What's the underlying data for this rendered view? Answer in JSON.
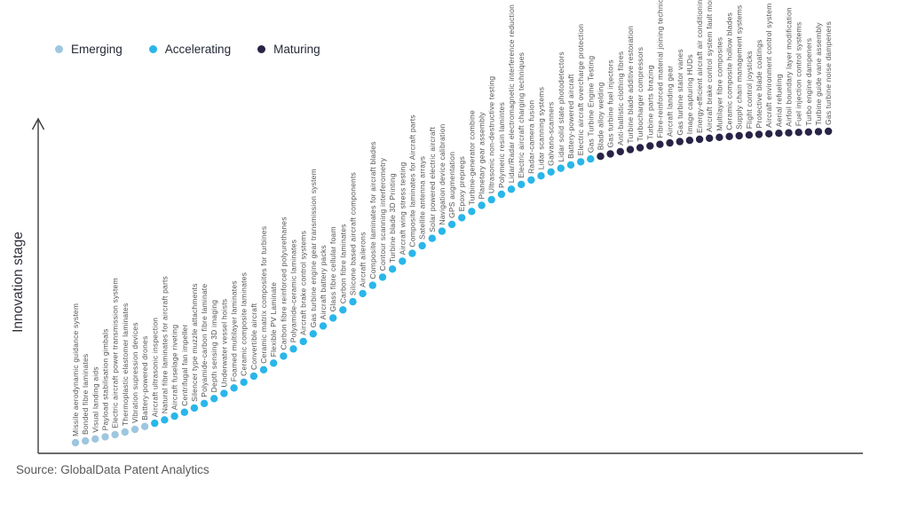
{
  "source": "Source: GlobalData Patent Analytics",
  "axis": {
    "ylabel": "Innovation stage"
  },
  "legend": {
    "items": [
      {
        "label": "Emerging",
        "color": "#9EC6DF"
      },
      {
        "label": "Accelerating",
        "color": "#29B6EA"
      },
      {
        "label": "Maturing",
        "color": "#282447"
      }
    ]
  },
  "chart_data": {
    "type": "scatter",
    "title": "",
    "xlabel": "",
    "ylabel": "Innovation stage",
    "grid": false,
    "legend_position": "top-left",
    "x_axis": {
      "ticks": []
    },
    "y_axis": {
      "ticks": [],
      "meaning": "ordinal S-curve rank, low = emerging, high = maturing"
    },
    "stage_colors": {
      "Emerging": "#9EC6DF",
      "Accelerating": "#29B6EA",
      "Maturing": "#282447"
    },
    "points": [
      {
        "rank": 1,
        "label": "Missile aerodynamic guidance system",
        "stage": "Emerging"
      },
      {
        "rank": 2,
        "label": "Bonded fibre laminates",
        "stage": "Emerging"
      },
      {
        "rank": 3,
        "label": "Visual landing aids",
        "stage": "Emerging"
      },
      {
        "rank": 4,
        "label": "Payload stabilisation gimbals",
        "stage": "Emerging"
      },
      {
        "rank": 5,
        "label": "Electric aircraft power transmission system",
        "stage": "Emerging"
      },
      {
        "rank": 6,
        "label": "Thermoplastic elastomer laminates",
        "stage": "Emerging"
      },
      {
        "rank": 7,
        "label": "Vibration supression devices",
        "stage": "Emerging"
      },
      {
        "rank": 8,
        "label": "Battery-powered drones",
        "stage": "Emerging"
      },
      {
        "rank": 9,
        "label": "Aircraft ultrasonic inspection",
        "stage": "Accelerating"
      },
      {
        "rank": 10,
        "label": "Natural fibre laminates for aircraft parts",
        "stage": "Accelerating"
      },
      {
        "rank": 11,
        "label": "Aircraft fuselage riveting",
        "stage": "Accelerating"
      },
      {
        "rank": 12,
        "label": "Centrifugal fan impeller",
        "stage": "Accelerating"
      },
      {
        "rank": 13,
        "label": "Silencer type muzzle attachments",
        "stage": "Accelerating"
      },
      {
        "rank": 14,
        "label": "Polyamide-carbon fibre laminate",
        "stage": "Accelerating"
      },
      {
        "rank": 15,
        "label": "Depth sensing 3D imaging",
        "stage": "Accelerating"
      },
      {
        "rank": 16,
        "label": "Underwater vessel hoists",
        "stage": "Accelerating"
      },
      {
        "rank": 17,
        "label": "Foamed multilayer laminates",
        "stage": "Accelerating"
      },
      {
        "rank": 18,
        "label": "Ceramic composite laminates",
        "stage": "Accelerating"
      },
      {
        "rank": 19,
        "label": "Convertible aircraft",
        "stage": "Accelerating"
      },
      {
        "rank": 20,
        "label": "Ceramic matrix composites for turbines",
        "stage": "Accelerating"
      },
      {
        "rank": 21,
        "label": "Flexible PV Laminate",
        "stage": "Accelerating"
      },
      {
        "rank": 22,
        "label": "Carbon fibre reinforced polyurethanes",
        "stage": "Accelerating"
      },
      {
        "rank": 23,
        "label": "Polyamide-ceramic laminates",
        "stage": "Accelerating"
      },
      {
        "rank": 24,
        "label": "Aircraft brake control systems",
        "stage": "Accelerating"
      },
      {
        "rank": 25,
        "label": "Gas turbine engine gear transmission system",
        "stage": "Accelerating"
      },
      {
        "rank": 26,
        "label": "Aircraft battery packs",
        "stage": "Accelerating"
      },
      {
        "rank": 27,
        "label": "Glass fibre cellular foam",
        "stage": "Accelerating"
      },
      {
        "rank": 28,
        "label": "Carbon fibre laminates",
        "stage": "Accelerating"
      },
      {
        "rank": 29,
        "label": "Silicone based aircraft components",
        "stage": "Accelerating"
      },
      {
        "rank": 30,
        "label": "Aircraft ailerons",
        "stage": "Accelerating"
      },
      {
        "rank": 31,
        "label": "Composite laminates for aircraft blades",
        "stage": "Accelerating"
      },
      {
        "rank": 32,
        "label": "Contour scanning interferometry",
        "stage": "Accelerating"
      },
      {
        "rank": 33,
        "label": "Turbine blade 3D Printing",
        "stage": "Accelerating"
      },
      {
        "rank": 34,
        "label": "Aircraft wing stress testing",
        "stage": "Accelerating"
      },
      {
        "rank": 35,
        "label": "Composite laminates for Aircraft parts",
        "stage": "Accelerating"
      },
      {
        "rank": 36,
        "label": "Satellite antenna arrays",
        "stage": "Accelerating"
      },
      {
        "rank": 37,
        "label": "Solar powered electric aircraft",
        "stage": "Accelerating"
      },
      {
        "rank": 38,
        "label": "Navigation device calibration",
        "stage": "Accelerating"
      },
      {
        "rank": 39,
        "label": "GPS augmentation",
        "stage": "Accelerating"
      },
      {
        "rank": 40,
        "label": "Epoxy prepregs",
        "stage": "Accelerating"
      },
      {
        "rank": 41,
        "label": "Turbine-generator combine",
        "stage": "Accelerating"
      },
      {
        "rank": 42,
        "label": "Planetary gear assembly",
        "stage": "Accelerating"
      },
      {
        "rank": 43,
        "label": "Ultrasonic non-destructive testing",
        "stage": "Accelerating"
      },
      {
        "rank": 44,
        "label": "Polymeric resin lamintes",
        "stage": "Accelerating"
      },
      {
        "rank": 45,
        "label": "Lidar/Radar electromagnetic interference reduction",
        "stage": "Accelerating"
      },
      {
        "rank": 46,
        "label": "Electric aircraft charging techniques",
        "stage": "Accelerating"
      },
      {
        "rank": 47,
        "label": "Radar-camera fusion",
        "stage": "Accelerating"
      },
      {
        "rank": 48,
        "label": "Lidar scanning systems",
        "stage": "Accelerating"
      },
      {
        "rank": 49,
        "label": "Galvano-scanners",
        "stage": "Accelerating"
      },
      {
        "rank": 50,
        "label": "Lidar solid state photodetectors",
        "stage": "Accelerating"
      },
      {
        "rank": 51,
        "label": "Battery-powered aircraft",
        "stage": "Accelerating"
      },
      {
        "rank": 52,
        "label": "Electric aircraft overcharge protection",
        "stage": "Accelerating"
      },
      {
        "rank": 53,
        "label": "Gas Turbine Engine Testing",
        "stage": "Accelerating"
      },
      {
        "rank": 54,
        "label": "Blade alloy welding",
        "stage": "Maturing"
      },
      {
        "rank": 55,
        "label": "Gas turbine fuel injectors",
        "stage": "Maturing"
      },
      {
        "rank": 56,
        "label": "Anti-ballistic clothing fibres",
        "stage": "Maturing"
      },
      {
        "rank": 57,
        "label": "Turbine blade additive restoration",
        "stage": "Maturing"
      },
      {
        "rank": 58,
        "label": "Turbocharger compressors",
        "stage": "Maturing"
      },
      {
        "rank": 59,
        "label": "Turbine parts brazing",
        "stage": "Maturing"
      },
      {
        "rank": 60,
        "label": "Fibre-reinforced material joining techniques",
        "stage": "Maturing"
      },
      {
        "rank": 61,
        "label": "Aircraft landing gear",
        "stage": "Maturing"
      },
      {
        "rank": 62,
        "label": "Gas turbine stator vanes",
        "stage": "Maturing"
      },
      {
        "rank": 63,
        "label": "Image capturing HUDs",
        "stage": "Maturing"
      },
      {
        "rank": 64,
        "label": "Energy-efficient aircraft air conditioning",
        "stage": "Maturing"
      },
      {
        "rank": 65,
        "label": "Aircraft brake control system fault monitoring",
        "stage": "Maturing"
      },
      {
        "rank": 66,
        "label": "Multilayer fibre composites",
        "stage": "Maturing"
      },
      {
        "rank": 67,
        "label": "Ceramic composite hollow blades",
        "stage": "Maturing"
      },
      {
        "rank": 68,
        "label": "Supply chain management systems",
        "stage": "Maturing"
      },
      {
        "rank": 69,
        "label": "Flight control joysticks",
        "stage": "Maturing"
      },
      {
        "rank": 70,
        "label": "Protective blade coatings",
        "stage": "Maturing"
      },
      {
        "rank": 71,
        "label": "Aircraft environment control system",
        "stage": "Maturing"
      },
      {
        "rank": 72,
        "label": "Aerial refueling",
        "stage": "Maturing"
      },
      {
        "rank": 73,
        "label": "Airfoil boundary layer modification",
        "stage": "Maturing"
      },
      {
        "rank": 74,
        "label": "Fuel injection control systems",
        "stage": "Maturing"
      },
      {
        "rank": 75,
        "label": "Turbo engine dampeners",
        "stage": "Maturing"
      },
      {
        "rank": 76,
        "label": "Turbine guide vane assembly",
        "stage": "Maturing"
      },
      {
        "rank": 77,
        "label": "Gas turbine noise dampeners",
        "stage": "Maturing"
      }
    ]
  }
}
